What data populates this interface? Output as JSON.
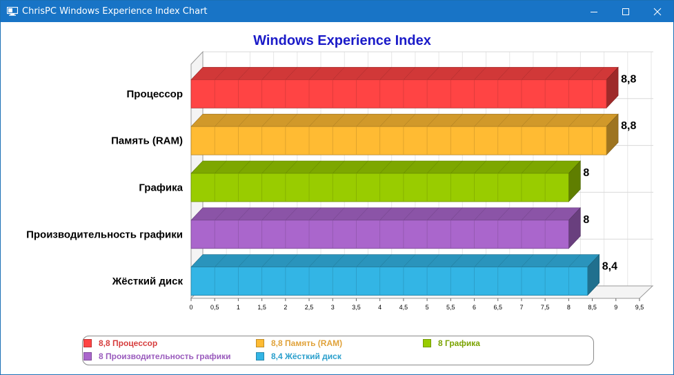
{
  "window": {
    "title": "ChrisPC Windows Experience Index Chart"
  },
  "icons": {
    "app": "monitor-icon",
    "minimize": "minimize-icon",
    "maximize": "maximize-icon",
    "close": "close-icon"
  },
  "chart_data": {
    "type": "bar",
    "orientation": "horizontal",
    "style": "3d",
    "title": "Windows Experience Index",
    "title_color": "#1a1ac8",
    "categories": [
      "Процессор",
      "Память (RAM)",
      "Графика",
      "Производительность графики",
      "Жёсткий диск"
    ],
    "values": [
      8.8,
      8.8,
      8,
      8,
      8.4
    ],
    "value_labels": [
      "8,8",
      "8,8",
      "8",
      "8",
      "8,4"
    ],
    "colors": [
      "#ff4444",
      "#ffbb33",
      "#99cc00",
      "#aa66cc",
      "#33b5e5"
    ],
    "xlim": [
      0,
      9.5
    ],
    "x_ticks": [
      "0",
      "0,5",
      "1",
      "1,5",
      "2",
      "2,5",
      "3",
      "3,5",
      "4",
      "4,5",
      "5",
      "5,5",
      "6",
      "6,5",
      "7",
      "7,5",
      "8",
      "8,5",
      "9",
      "9,5"
    ],
    "xlabel": "",
    "ylabel": "",
    "grid": true,
    "legend_position": "bottom",
    "legend": [
      {
        "label": "8,8 Процессор",
        "color": "#ff4444",
        "text_color": "#d63c3c"
      },
      {
        "label": "8,8 Память (RAM)",
        "color": "#ffbb33",
        "text_color": "#e0a23a"
      },
      {
        "label": "8 Графика",
        "color": "#99cc00",
        "text_color": "#7aa300"
      },
      {
        "label": "8 Производительность графики",
        "color": "#aa66cc",
        "text_color": "#9a5bbd"
      },
      {
        "label": "8,4 Жёсткий диск",
        "color": "#33b5e5",
        "text_color": "#2a9fcc"
      }
    ]
  }
}
